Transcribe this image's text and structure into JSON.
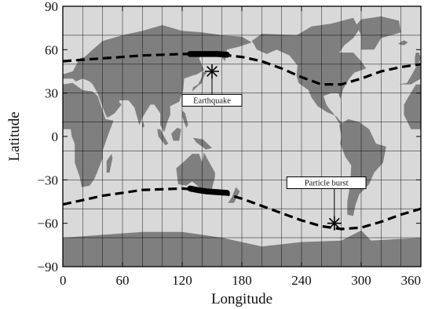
{
  "chart_data": {
    "type": "scatter",
    "title": "",
    "xlabel": "Longitude",
    "ylabel": "Latitude",
    "xlim": [
      0,
      360
    ],
    "ylim": [
      -90,
      90
    ],
    "xticks": [
      0,
      60,
      120,
      180,
      240,
      300,
      360
    ],
    "yticks": [
      90,
      60,
      30,
      0,
      -30,
      -60,
      -90
    ],
    "xtick_labels": [
      "0",
      "60",
      "120",
      "180",
      "240",
      "300",
      "360"
    ],
    "ytick_labels": [
      "90",
      "60",
      "30",
      "0",
      "−30",
      "−60",
      "−90"
    ],
    "grid": true,
    "grid_step_degrees": 20,
    "background": "world map (land in gray, ocean in light gray)",
    "colors": {
      "ocean": "#d9d9d9",
      "land": "#7f7f7f",
      "track": "#000000"
    },
    "series": [
      {
        "style": "dashed",
        "x": [
          0,
          20,
          40,
          60,
          80,
          100,
          120,
          140,
          160,
          180,
          200,
          220,
          240,
          260,
          280,
          300,
          320,
          340,
          360
        ],
        "y": [
          52,
          53,
          54,
          55,
          56,
          56.5,
          57,
          57,
          56.5,
          55,
          52,
          47,
          41,
          36,
          36,
          40,
          45,
          48,
          50
        ]
      },
      {
        "style": "dashed",
        "x": [
          0,
          20,
          40,
          60,
          80,
          100,
          120,
          140,
          160,
          180,
          200,
          220,
          240,
          260,
          280,
          300,
          320,
          340,
          360
        ],
        "y": [
          -47,
          -44,
          -41,
          -39,
          -37,
          -36.5,
          -36,
          -37,
          -39,
          -43,
          -48,
          -53,
          -58,
          -62,
          -64,
          -63,
          -59,
          -54,
          -50
        ]
      },
      {
        "style": "thick-segment",
        "x": [
          128,
          135,
          145,
          155,
          165
        ],
        "y": [
          57,
          57,
          57,
          57,
          56.5
        ]
      },
      {
        "style": "thick-segment",
        "x": [
          128,
          135,
          145,
          155,
          165
        ],
        "y": [
          -36,
          -37,
          -38,
          -38.5,
          -39
        ]
      }
    ],
    "annotations": [
      {
        "label": "Earthquake",
        "marker": "asterisk",
        "x": 150,
        "y": 45,
        "box_x": 150,
        "box_y": 25
      },
      {
        "label": "Particle burst",
        "marker": "asterisk",
        "x": 273,
        "y": -60,
        "box_x": 265,
        "box_y": -32
      }
    ]
  }
}
